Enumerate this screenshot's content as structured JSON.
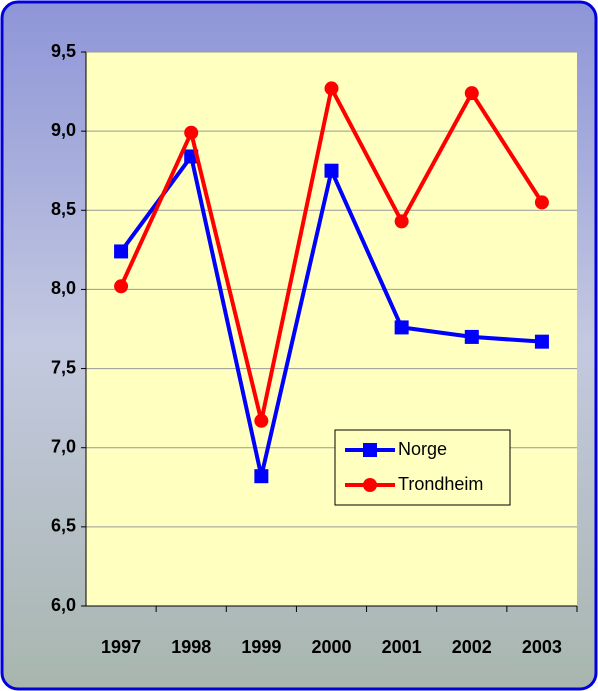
{
  "chart_data": {
    "type": "line",
    "categories": [
      "1997",
      "1998",
      "1999",
      "2000",
      "2001",
      "2002",
      "2003"
    ],
    "series": [
      {
        "name": "Norge",
        "color": "#0000ff",
        "marker": "square",
        "values": [
          8.24,
          8.84,
          6.82,
          8.75,
          7.76,
          7.7,
          7.67
        ]
      },
      {
        "name": "Trondheim",
        "color": "#ff0000",
        "marker": "circle",
        "values": [
          8.02,
          8.99,
          7.17,
          9.27,
          8.43,
          9.24,
          8.55
        ]
      }
    ],
    "ylim": [
      6.0,
      9.5
    ],
    "yticks": [
      {
        "value": 6.0,
        "label": "6,0"
      },
      {
        "value": 6.5,
        "label": "6,5"
      },
      {
        "value": 7.0,
        "label": "7,0"
      },
      {
        "value": 7.5,
        "label": "7,5"
      },
      {
        "value": 8.0,
        "label": "8,0"
      },
      {
        "value": 8.5,
        "label": "8,5"
      },
      {
        "value": 9.0,
        "label": "9,0"
      },
      {
        "value": 9.5,
        "label": "9,5"
      }
    ],
    "grid": true
  }
}
